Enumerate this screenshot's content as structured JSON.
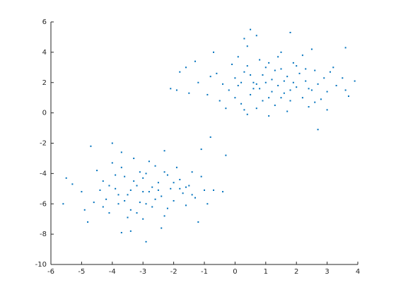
{
  "chart_data": {
    "type": "scatter",
    "color": "#0072bd",
    "xlim": [
      -6,
      4
    ],
    "xticks": [
      -6,
      -5,
      -4,
      -3,
      -2,
      -1,
      0,
      1,
      2,
      3,
      4
    ],
    "ylim": [
      -10,
      6
    ],
    "yticks": [
      -10,
      -8,
      -6,
      -4,
      -2,
      0,
      2,
      4,
      6
    ],
    "x": [
      0.5,
      1.8,
      0.3,
      0.7,
      -0.7,
      3.6,
      2.5,
      0.4,
      1.5,
      2.2,
      -1.3,
      -1.6,
      -1.8,
      -1.9,
      -2.1,
      -1.2,
      -0.9,
      -0.5,
      -0.2,
      0.0,
      0.1,
      0.2,
      0.3,
      0.4,
      0.5,
      0.6,
      0.7,
      0.8,
      0.9,
      1.0,
      1.1,
      1.2,
      1.3,
      1.4,
      1.5,
      1.6,
      1.7,
      1.8,
      1.9,
      2.0,
      2.1,
      2.2,
      2.3,
      2.4,
      2.5,
      2.6,
      2.7,
      2.8,
      2.9,
      3.0,
      3.1,
      3.3,
      3.5,
      3.7,
      3.9,
      3.6,
      3.0,
      2.7,
      1.1,
      0.4,
      -0.3,
      -0.6,
      -0.1,
      0.2,
      0.6,
      0.9,
      1.0,
      1.2,
      1.3,
      1.5,
      1.6,
      0.8,
      1.4,
      0.1,
      2.0,
      2.3,
      -0.4,
      -0.8,
      0.0,
      0.5,
      1.9,
      2.4,
      1.7,
      0.3,
      -1.5,
      3.2,
      2.6,
      1.1,
      0.7,
      1.8,
      -4.7,
      -4.0,
      -3.7,
      -2.3,
      -1.1,
      -0.3,
      -0.8,
      -5.5,
      -5.3,
      -5.0,
      -4.9,
      -4.8,
      -5.6,
      -4.5,
      -4.3,
      -4.2,
      -4.1,
      -4.0,
      -3.9,
      -3.8,
      -3.7,
      -3.6,
      -3.5,
      -3.4,
      -3.3,
      -3.2,
      -3.1,
      -3.0,
      -2.9,
      -2.8,
      -2.7,
      -2.6,
      -2.5,
      -2.4,
      -2.3,
      -2.2,
      -2.1,
      -2.0,
      -1.9,
      -1.8,
      -1.7,
      -1.6,
      -1.5,
      -1.4,
      -1.3,
      -1.2,
      -1.1,
      -1.0,
      -0.7,
      -0.4,
      -0.9,
      -2.9,
      -3.4,
      -2.4,
      -3.9,
      -4.4,
      -3.6,
      -3.3,
      -3.0,
      -2.7,
      -2.6,
      -3.1,
      -3.5,
      -4.1,
      -2.2,
      -1.8,
      -2.8,
      -3.8,
      -4.6,
      -3.2,
      -2.0,
      -1.6,
      -2.5,
      -3.0,
      -3.7,
      -4.3,
      -2.9,
      -2.3,
      -1.4,
      -3.4
    ],
    "values": [
      5.5,
      5.3,
      4.9,
      5.1,
      4.0,
      4.3,
      4.2,
      4.4,
      4.0,
      3.8,
      3.4,
      3.0,
      2.7,
      1.5,
      1.6,
      2.0,
      1.2,
      0.8,
      1.5,
      2.3,
      1.8,
      0.6,
      2.7,
      3.1,
      1.2,
      2.0,
      0.3,
      1.6,
      2.5,
      3.0,
      1.0,
      2.2,
      0.5,
      1.8,
      2.9,
      1.3,
      2.4,
      0.8,
      3.3,
      1.7,
      2.6,
      1.0,
      2.1,
      0.4,
      1.5,
      2.8,
      1.9,
      0.9,
      2.3,
      1.4,
      2.7,
      1.8,
      2.3,
      1.1,
      2.1,
      1.5,
      0.2,
      -1.1,
      -0.2,
      -0.1,
      0.3,
      2.6,
      3.2,
      2.0,
      1.6,
      0.8,
      2.0,
      1.4,
      2.8,
      1.0,
      2.1,
      3.5,
      3.7,
      3.7,
      3.1,
      2.9,
      1.9,
      2.4,
      1.0,
      2.5,
      2.0,
      1.6,
      0.1,
      0.2,
      1.3,
      3.0,
      0.7,
      3.3,
      1.9,
      1.5,
      -2.2,
      -2.0,
      -2.6,
      -2.5,
      -2.4,
      -2.8,
      -1.6,
      -4.3,
      -4.7,
      -5.2,
      -6.4,
      -7.2,
      -6.0,
      -3.8,
      -4.5,
      -5.7,
      -6.6,
      -3.3,
      -5.0,
      -6.0,
      -7.9,
      -4.2,
      -5.4,
      -6.4,
      -3.0,
      -4.8,
      -5.9,
      -7.0,
      -4.0,
      -5.2,
      -6.2,
      -3.5,
      -4.6,
      -5.5,
      -6.8,
      -4.1,
      -5.0,
      -5.8,
      -3.6,
      -4.4,
      -5.3,
      -6.1,
      -4.8,
      -3.9,
      -5.6,
      -7.2,
      -4.2,
      -5.1,
      -5.1,
      -5.2,
      -6.0,
      -8.5,
      -7.8,
      -7.6,
      -4.1,
      -5.1,
      -5.8,
      -4.5,
      -5.2,
      -4.9,
      -5.7,
      -3.9,
      -6.9,
      -4.8,
      -6.3,
      -5.0,
      -3.2,
      -5.4,
      -5.9,
      -6.6,
      -4.6,
      -4.9,
      -5.1,
      -4.3,
      -3.6,
      -6.2,
      -6.0,
      -3.9,
      -5.4,
      -5.1
    ]
  }
}
